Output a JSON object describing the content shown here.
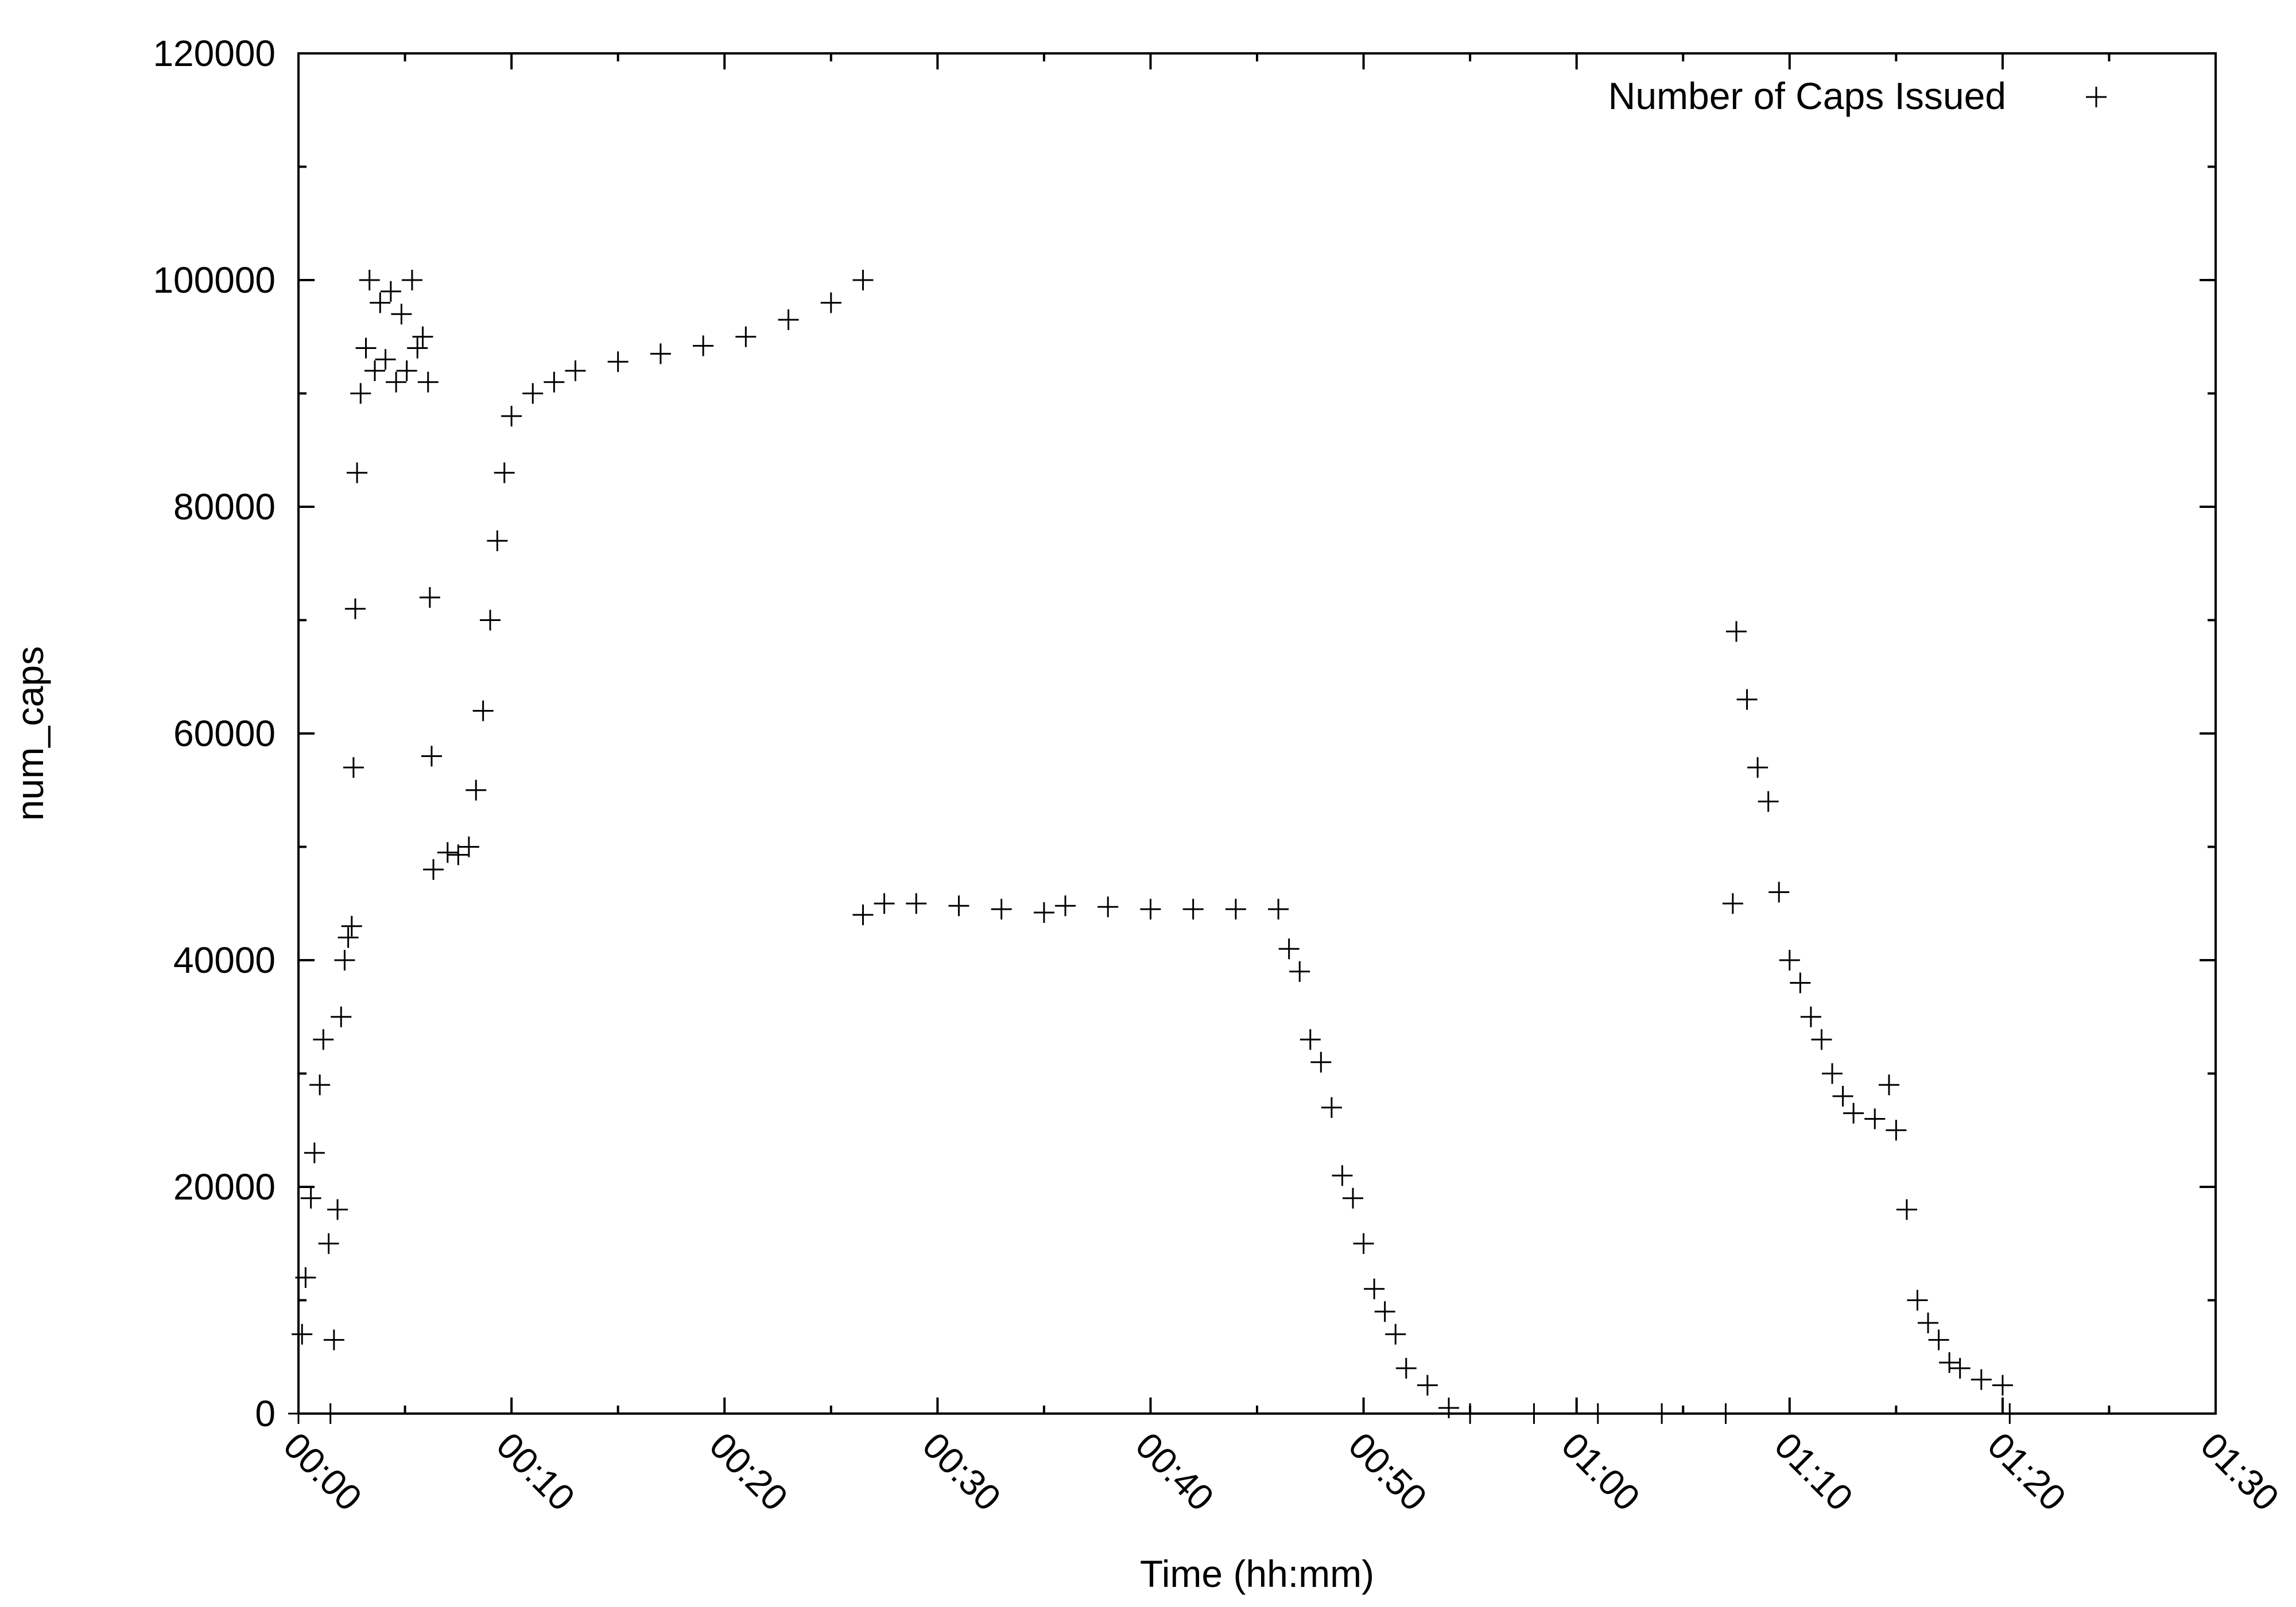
{
  "chart_data": {
    "type": "scatter",
    "title": "",
    "xlabel": "Time (hh:mm)",
    "ylabel": "num_caps",
    "xlim": [
      "00:00",
      "01:30"
    ],
    "ylim": [
      0,
      120000
    ],
    "x_ticks": [
      "00:00",
      "00:10",
      "00:20",
      "00:30",
      "00:40",
      "00:50",
      "01:00",
      "01:10",
      "01:20",
      "01:30"
    ],
    "y_ticks": [
      "0",
      "20000",
      "40000",
      "60000",
      "80000",
      "100000",
      "120000"
    ],
    "marker": "+",
    "grid": false,
    "legend": {
      "position": "top-right",
      "entries": [
        "Number of Caps Issued"
      ]
    },
    "series": [
      {
        "name": "Number of Caps Issued",
        "points": [
          [
            "00:00:00",
            0
          ],
          [
            "00:00:10",
            7000
          ],
          [
            "00:00:20",
            12000
          ],
          [
            "00:00:35",
            19000
          ],
          [
            "00:00:45",
            23000
          ],
          [
            "00:01:00",
            29000
          ],
          [
            "00:01:10",
            33000
          ],
          [
            "00:01:25",
            15000
          ],
          [
            "00:01:30",
            0
          ],
          [
            "00:01:40",
            6500
          ],
          [
            "00:01:50",
            18000
          ],
          [
            "00:02:00",
            35000
          ],
          [
            "00:02:10",
            40000
          ],
          [
            "00:02:20",
            42000
          ],
          [
            "00:02:30",
            43000
          ],
          [
            "00:02:35",
            57000
          ],
          [
            "00:02:40",
            71000
          ],
          [
            "00:02:45",
            83000
          ],
          [
            "00:02:55",
            90000
          ],
          [
            "00:03:10",
            94000
          ],
          [
            "00:03:20",
            100000
          ],
          [
            "00:03:35",
            92000
          ],
          [
            "00:03:50",
            98000
          ],
          [
            "00:04:05",
            93000
          ],
          [
            "00:04:20",
            99000
          ],
          [
            "00:04:35",
            91000
          ],
          [
            "00:04:50",
            97000
          ],
          [
            "00:05:05",
            92000
          ],
          [
            "00:05:20",
            100000
          ],
          [
            "00:05:35",
            94000
          ],
          [
            "00:05:50",
            95000
          ],
          [
            "00:06:05",
            91000
          ],
          [
            "00:06:10",
            72000
          ],
          [
            "00:06:15",
            58000
          ],
          [
            "00:06:20",
            48000
          ],
          [
            "00:07:00",
            49500
          ],
          [
            "00:07:30",
            49300
          ],
          [
            "00:08:00",
            50000
          ],
          [
            "00:08:20",
            55000
          ],
          [
            "00:08:40",
            62000
          ],
          [
            "00:09:00",
            70000
          ],
          [
            "00:09:20",
            77000
          ],
          [
            "00:09:40",
            83000
          ],
          [
            "00:10:00",
            88000
          ],
          [
            "00:11:00",
            90000
          ],
          [
            "00:12:00",
            91000
          ],
          [
            "00:13:00",
            92000
          ],
          [
            "00:15:00",
            92800
          ],
          [
            "00:17:00",
            93500
          ],
          [
            "00:19:00",
            94200
          ],
          [
            "00:21:00",
            95000
          ],
          [
            "00:23:00",
            96500
          ],
          [
            "00:25:00",
            98000
          ],
          [
            "00:26:30",
            100000
          ],
          [
            "00:26:30",
            44000
          ],
          [
            "00:27:30",
            45000
          ],
          [
            "00:29:00",
            45000
          ],
          [
            "00:31:00",
            44800
          ],
          [
            "00:33:00",
            44500
          ],
          [
            "00:35:00",
            44200
          ],
          [
            "00:36:00",
            44800
          ],
          [
            "00:38:00",
            44700
          ],
          [
            "00:40:00",
            44500
          ],
          [
            "00:42:00",
            44500
          ],
          [
            "00:44:00",
            44500
          ],
          [
            "00:46:00",
            44500
          ],
          [
            "00:46:30",
            41000
          ],
          [
            "00:47:00",
            39000
          ],
          [
            "00:47:30",
            33000
          ],
          [
            "00:48:00",
            31000
          ],
          [
            "00:48:30",
            27000
          ],
          [
            "00:49:00",
            21000
          ],
          [
            "00:49:30",
            19000
          ],
          [
            "00:50:00",
            15000
          ],
          [
            "00:50:30",
            11000
          ],
          [
            "00:51:00",
            9000
          ],
          [
            "00:51:30",
            7000
          ],
          [
            "00:52:00",
            4000
          ],
          [
            "00:53:00",
            2500
          ],
          [
            "00:54:00",
            500
          ],
          [
            "00:55:00",
            0
          ],
          [
            "00:58:00",
            0
          ],
          [
            "01:01:00",
            0
          ],
          [
            "01:04:00",
            0
          ],
          [
            "01:07:00",
            0
          ],
          [
            "01:07:20",
            45000
          ],
          [
            "01:07:30",
            69000
          ],
          [
            "01:08:00",
            63000
          ],
          [
            "01:08:30",
            57000
          ],
          [
            "01:09:00",
            54000
          ],
          [
            "01:09:30",
            46000
          ],
          [
            "01:10:00",
            40000
          ],
          [
            "01:10:30",
            38000
          ],
          [
            "01:11:00",
            35000
          ],
          [
            "01:11:30",
            33000
          ],
          [
            "01:12:00",
            30000
          ],
          [
            "01:12:30",
            28000
          ],
          [
            "01:13:00",
            26500
          ],
          [
            "01:14:00",
            26000
          ],
          [
            "01:14:40",
            29000
          ],
          [
            "01:15:00",
            25000
          ],
          [
            "01:15:30",
            18000
          ],
          [
            "01:16:00",
            10000
          ],
          [
            "01:16:30",
            8000
          ],
          [
            "01:17:00",
            6500
          ],
          [
            "01:17:30",
            4500
          ],
          [
            "01:18:00",
            4000
          ],
          [
            "01:19:00",
            3000
          ],
          [
            "01:20:00",
            2500
          ],
          [
            "01:20:20",
            0
          ]
        ]
      }
    ]
  }
}
